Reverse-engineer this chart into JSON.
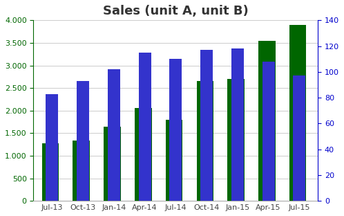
{
  "title": "Sales (unit A, unit B)",
  "categories": [
    "Jul-13",
    "Oct-13",
    "Jan-14",
    "Apr-14",
    "Jul-14",
    "Oct-14",
    "Jan-15",
    "Apr-15",
    "Jul-15"
  ],
  "green_values": [
    1270,
    1340,
    1650,
    2050,
    1800,
    2650,
    2700,
    3550,
    3900
  ],
  "blue_values": [
    83,
    93,
    102,
    115,
    110,
    117,
    118,
    108,
    97
  ],
  "left_ylim": [
    0,
    4000
  ],
  "right_ylim": [
    0,
    140
  ],
  "left_yticks": [
    0,
    500,
    1000,
    1500,
    2000,
    2500,
    3000,
    3500,
    4000
  ],
  "right_yticks": [
    0,
    20,
    40,
    60,
    80,
    100,
    120,
    140
  ],
  "green_color": "#006600",
  "blue_color": "#3333cc",
  "title_color": "#333333",
  "left_axis_color": "#006600",
  "right_axis_color": "#0000cc",
  "background_color": "#ffffff",
  "green_bar_width": 0.55,
  "blue_bar_width": 0.25,
  "title_fontsize": 13,
  "tick_fontsize": 8,
  "figsize": [
    4.98,
    3.12
  ],
  "dpi": 100
}
